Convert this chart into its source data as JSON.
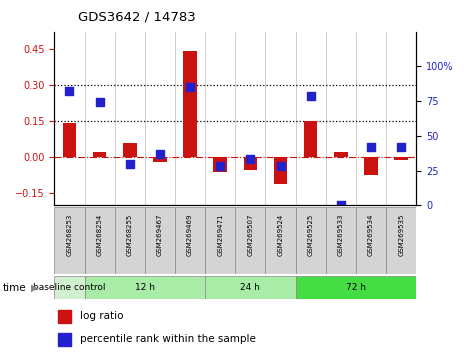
{
  "title": "GDS3642 / 14783",
  "samples": [
    "GSM268253",
    "GSM268254",
    "GSM268255",
    "GSM269467",
    "GSM269469",
    "GSM269471",
    "GSM269507",
    "GSM269524",
    "GSM269525",
    "GSM269533",
    "GSM269534",
    "GSM269535"
  ],
  "log_ratio": [
    0.14,
    0.02,
    0.06,
    -0.02,
    0.44,
    -0.06,
    -0.055,
    -0.11,
    0.148,
    0.02,
    -0.075,
    -0.01
  ],
  "percentile_rank": [
    82,
    74,
    30,
    37,
    85,
    28,
    33,
    28,
    79,
    0,
    42,
    42
  ],
  "left_yticks": [
    -0.15,
    0.0,
    0.15,
    0.3,
    0.45
  ],
  "right_yticks": [
    0,
    25,
    50,
    75,
    100
  ],
  "bar_color": "#cc1111",
  "dot_color": "#2222cc",
  "hline_y": [
    0.15,
    0.3
  ],
  "ylim": [
    -0.2,
    0.52
  ],
  "right_ylim": [
    0,
    124.8
  ],
  "legend_items": [
    "log ratio",
    "percentile rank within the sample"
  ],
  "group_data": [
    {
      "label": "baseline control",
      "xstart": -0.5,
      "xend": 0.5,
      "color": "#d0f0d0"
    },
    {
      "label": "12 h",
      "xstart": 0.5,
      "xend": 4.5,
      "color": "#a8eca8"
    },
    {
      "label": "24 h",
      "xstart": 4.5,
      "xend": 7.5,
      "color": "#a8eca8"
    },
    {
      "label": "72 h",
      "xstart": 7.5,
      "xend": 11.5,
      "color": "#44dd44"
    }
  ]
}
